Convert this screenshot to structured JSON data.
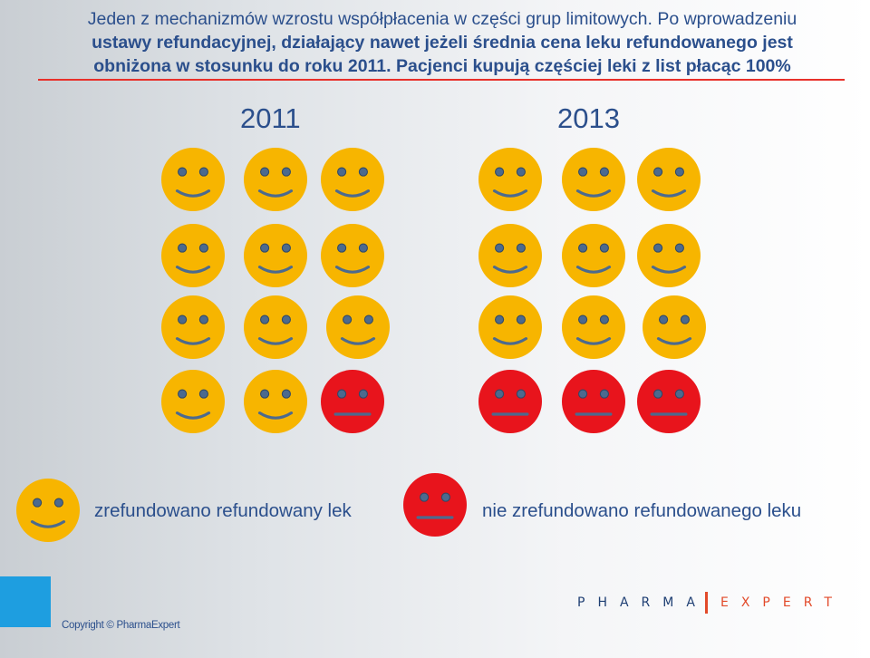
{
  "heading": {
    "line1": "Jeden z mechanizmów wzrostu współpłacenia w części grup limitowych. Po wprowadzeniu",
    "line2": "ustawy refundacyjnej, działający nawet jeżeli średnia cena leku refundowanego jest",
    "line3": "obniżona w stosunku do roku 2011. Pacjenci kupują częściej leki z list płacąc 100%"
  },
  "groups": [
    {
      "year": "2011",
      "refunded": 11,
      "not_refunded": 1
    },
    {
      "year": "2013",
      "refunded": 9,
      "not_refunded": 3
    }
  ],
  "legend": {
    "refunded_label": "zrefundowano refundowany lek",
    "not_refunded_label": "nie zrefundowano refundowanego leku"
  },
  "colors": {
    "happy_face": "#f7b500",
    "sad_face": "#e8141c",
    "heading_text": "#2b4f8c",
    "rule": "#e8302a",
    "accent_square": "#1e9ee0"
  },
  "footer": {
    "copyright": "Copyright © PharmaExpert",
    "logo_left": "PHARMA",
    "logo_right": "EXPERT"
  }
}
